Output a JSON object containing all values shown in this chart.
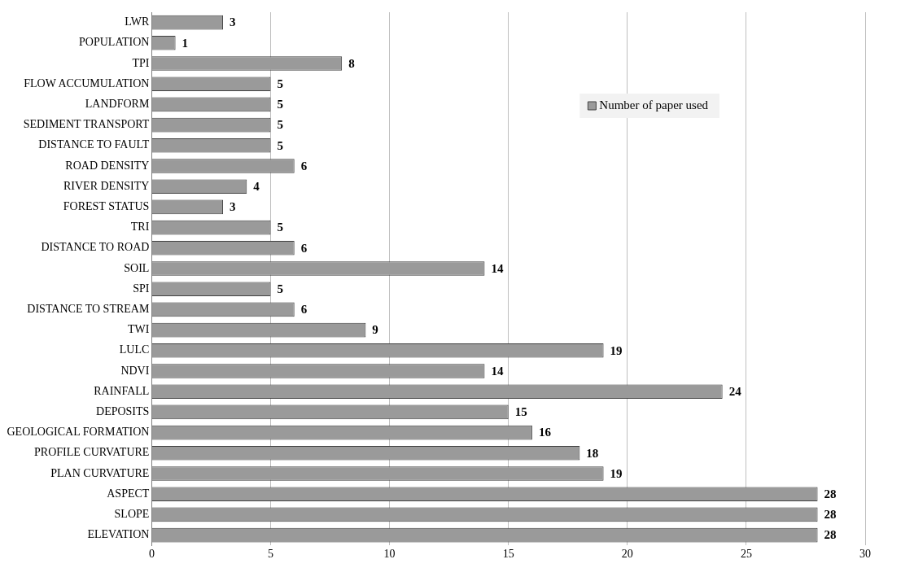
{
  "chart_data": {
    "type": "bar",
    "orientation": "horizontal",
    "categories": [
      "LWR",
      "POPULATION",
      "TPI",
      "FLOW ACCUMULATION",
      "LANDFORM",
      "SEDIMENT TRANSPORT",
      "DISTANCE TO FAULT",
      "ROAD DENSITY",
      "RIVER DENSITY",
      "FOREST STATUS",
      "TRI",
      "DISTANCE TO ROAD",
      "SOIL",
      "SPI",
      "DISTANCE TO STREAM",
      "TWI",
      "LULC",
      "NDVI",
      "RAINFALL",
      "DEPOSITS",
      "GEOLOGICAL FORMATION",
      "PROFILE CURVATURE",
      "PLAN CURVATURE",
      "ASPECT",
      "SLOPE",
      "ELEVATION"
    ],
    "series": [
      {
        "name": "Number of paper used",
        "color": "#9a9a9a",
        "values": [
          3,
          1,
          8,
          5,
          5,
          5,
          5,
          6,
          4,
          3,
          5,
          6,
          14,
          5,
          6,
          9,
          19,
          14,
          24,
          15,
          16,
          18,
          19,
          28,
          28,
          28
        ]
      }
    ],
    "xlim": [
      0,
      30
    ],
    "xticks": [
      0,
      5,
      10,
      15,
      20,
      25,
      30
    ],
    "grid": "x",
    "legend": "top right",
    "data_labels": true
  }
}
